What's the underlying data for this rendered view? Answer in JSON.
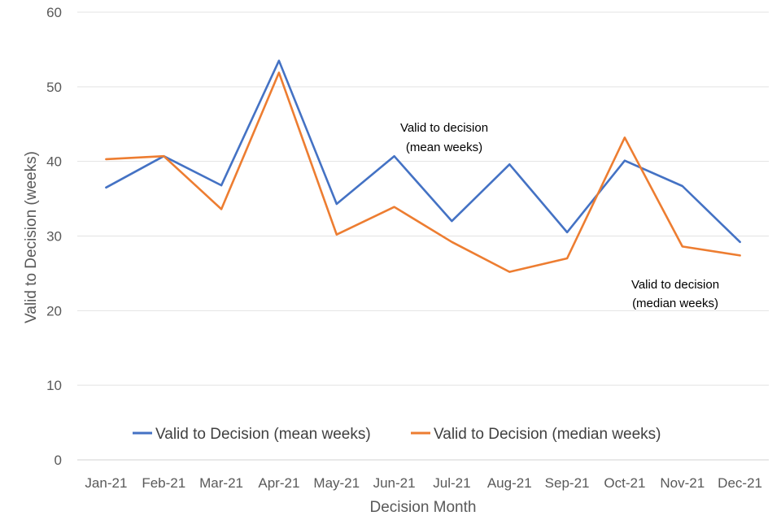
{
  "chart_data": {
    "type": "line",
    "title": "",
    "xlabel": "Decision Month",
    "ylabel": "Valid to Decision (weeks)",
    "ylim": [
      0,
      60
    ],
    "yticks": [
      0,
      10,
      20,
      30,
      40,
      50,
      60
    ],
    "grid": true,
    "legend_position": "bottom-inside",
    "categories": [
      "Jan-21",
      "Feb-21",
      "Mar-21",
      "Apr-21",
      "May-21",
      "Jun-21",
      "Jul-21",
      "Aug-21",
      "Sep-21",
      "Oct-21",
      "Nov-21",
      "Dec-21"
    ],
    "series": [
      {
        "name": "Valid to Decision (mean weeks)",
        "color": "#4472C4",
        "values": [
          36.5,
          40.7,
          36.8,
          53.5,
          34.3,
          40.7,
          32.0,
          39.6,
          30.5,
          40.1,
          36.7,
          29.2
        ]
      },
      {
        "name": "Valid to Decision (median weeks)",
        "color": "#ED7D31",
        "values": [
          40.3,
          40.7,
          33.6,
          51.9,
          30.2,
          33.9,
          29.2,
          25.2,
          27.0,
          43.2,
          28.6,
          27.4
        ]
      }
    ],
    "annotations": [
      {
        "line1": "Valid to decision",
        "line2": "(mean weeks)"
      },
      {
        "line1": "Valid to decision",
        "line2": "(median weeks)"
      }
    ]
  }
}
